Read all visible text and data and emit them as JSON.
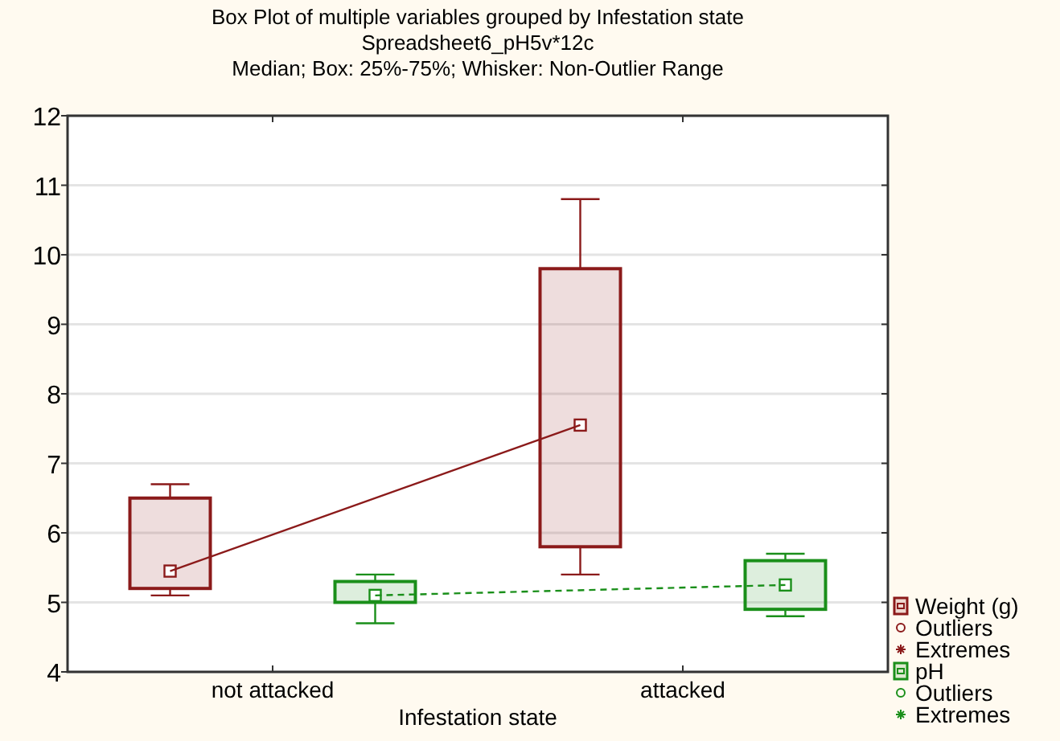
{
  "chart_data": {
    "type": "box",
    "title": "Box Plot of multiple variables grouped by Infestation state",
    "subtitle": "Spreadsheet6_pH5v*12c",
    "annotations": [
      "Median; Box: 25%-75%; Whisker: Non-Outlier Range"
    ],
    "xlabel": "Infestation state",
    "categories": [
      "not attacked",
      "attacked"
    ],
    "ylim": [
      4,
      12
    ],
    "yticks": [
      4,
      5,
      6,
      7,
      8,
      9,
      10,
      11,
      12
    ],
    "grid": "y",
    "legend": "bottom right",
    "series": [
      {
        "name": "Weight (g)",
        "color": "#8b1a1a",
        "boxes": [
          {
            "low": 5.1,
            "q1": 5.2,
            "median": 5.45,
            "q3": 6.5,
            "high": 6.7
          },
          {
            "low": 5.4,
            "q1": 5.8,
            "median": 7.55,
            "q3": 9.8,
            "high": 10.8
          }
        ]
      },
      {
        "type": "line",
        "color": "#8b1a1a",
        "line_style": "solid",
        "values": [
          5.45,
          7.55
        ]
      },
      {
        "name": "Outliers",
        "type": "scatter",
        "marker": "circle",
        "color": "#8b1a1a",
        "values": [
          null,
          null
        ]
      },
      {
        "name": "Extremes",
        "type": "scatter",
        "marker": "star",
        "color": "#8b1a1a",
        "values": [
          null,
          null
        ]
      },
      {
        "name": "pH",
        "color": "#1a8f1a",
        "boxes": [
          {
            "low": 4.7,
            "q1": 5.0,
            "median": 5.1,
            "q3": 5.3,
            "high": 5.4
          },
          {
            "low": 4.8,
            "q1": 4.9,
            "median": 5.25,
            "q3": 5.6,
            "high": 5.7
          }
        ]
      },
      {
        "type": "line",
        "color": "#1a8f1a",
        "line_style": "dashed",
        "values": [
          5.1,
          5.25
        ]
      },
      {
        "name": "Outliers",
        "type": "scatter",
        "marker": "circle",
        "color": "#1a8f1a",
        "values": [
          null,
          null
        ]
      },
      {
        "name": "Extremes",
        "type": "scatter",
        "marker": "star",
        "color": "#1a8f1a",
        "values": [
          null,
          null
        ]
      }
    ]
  }
}
